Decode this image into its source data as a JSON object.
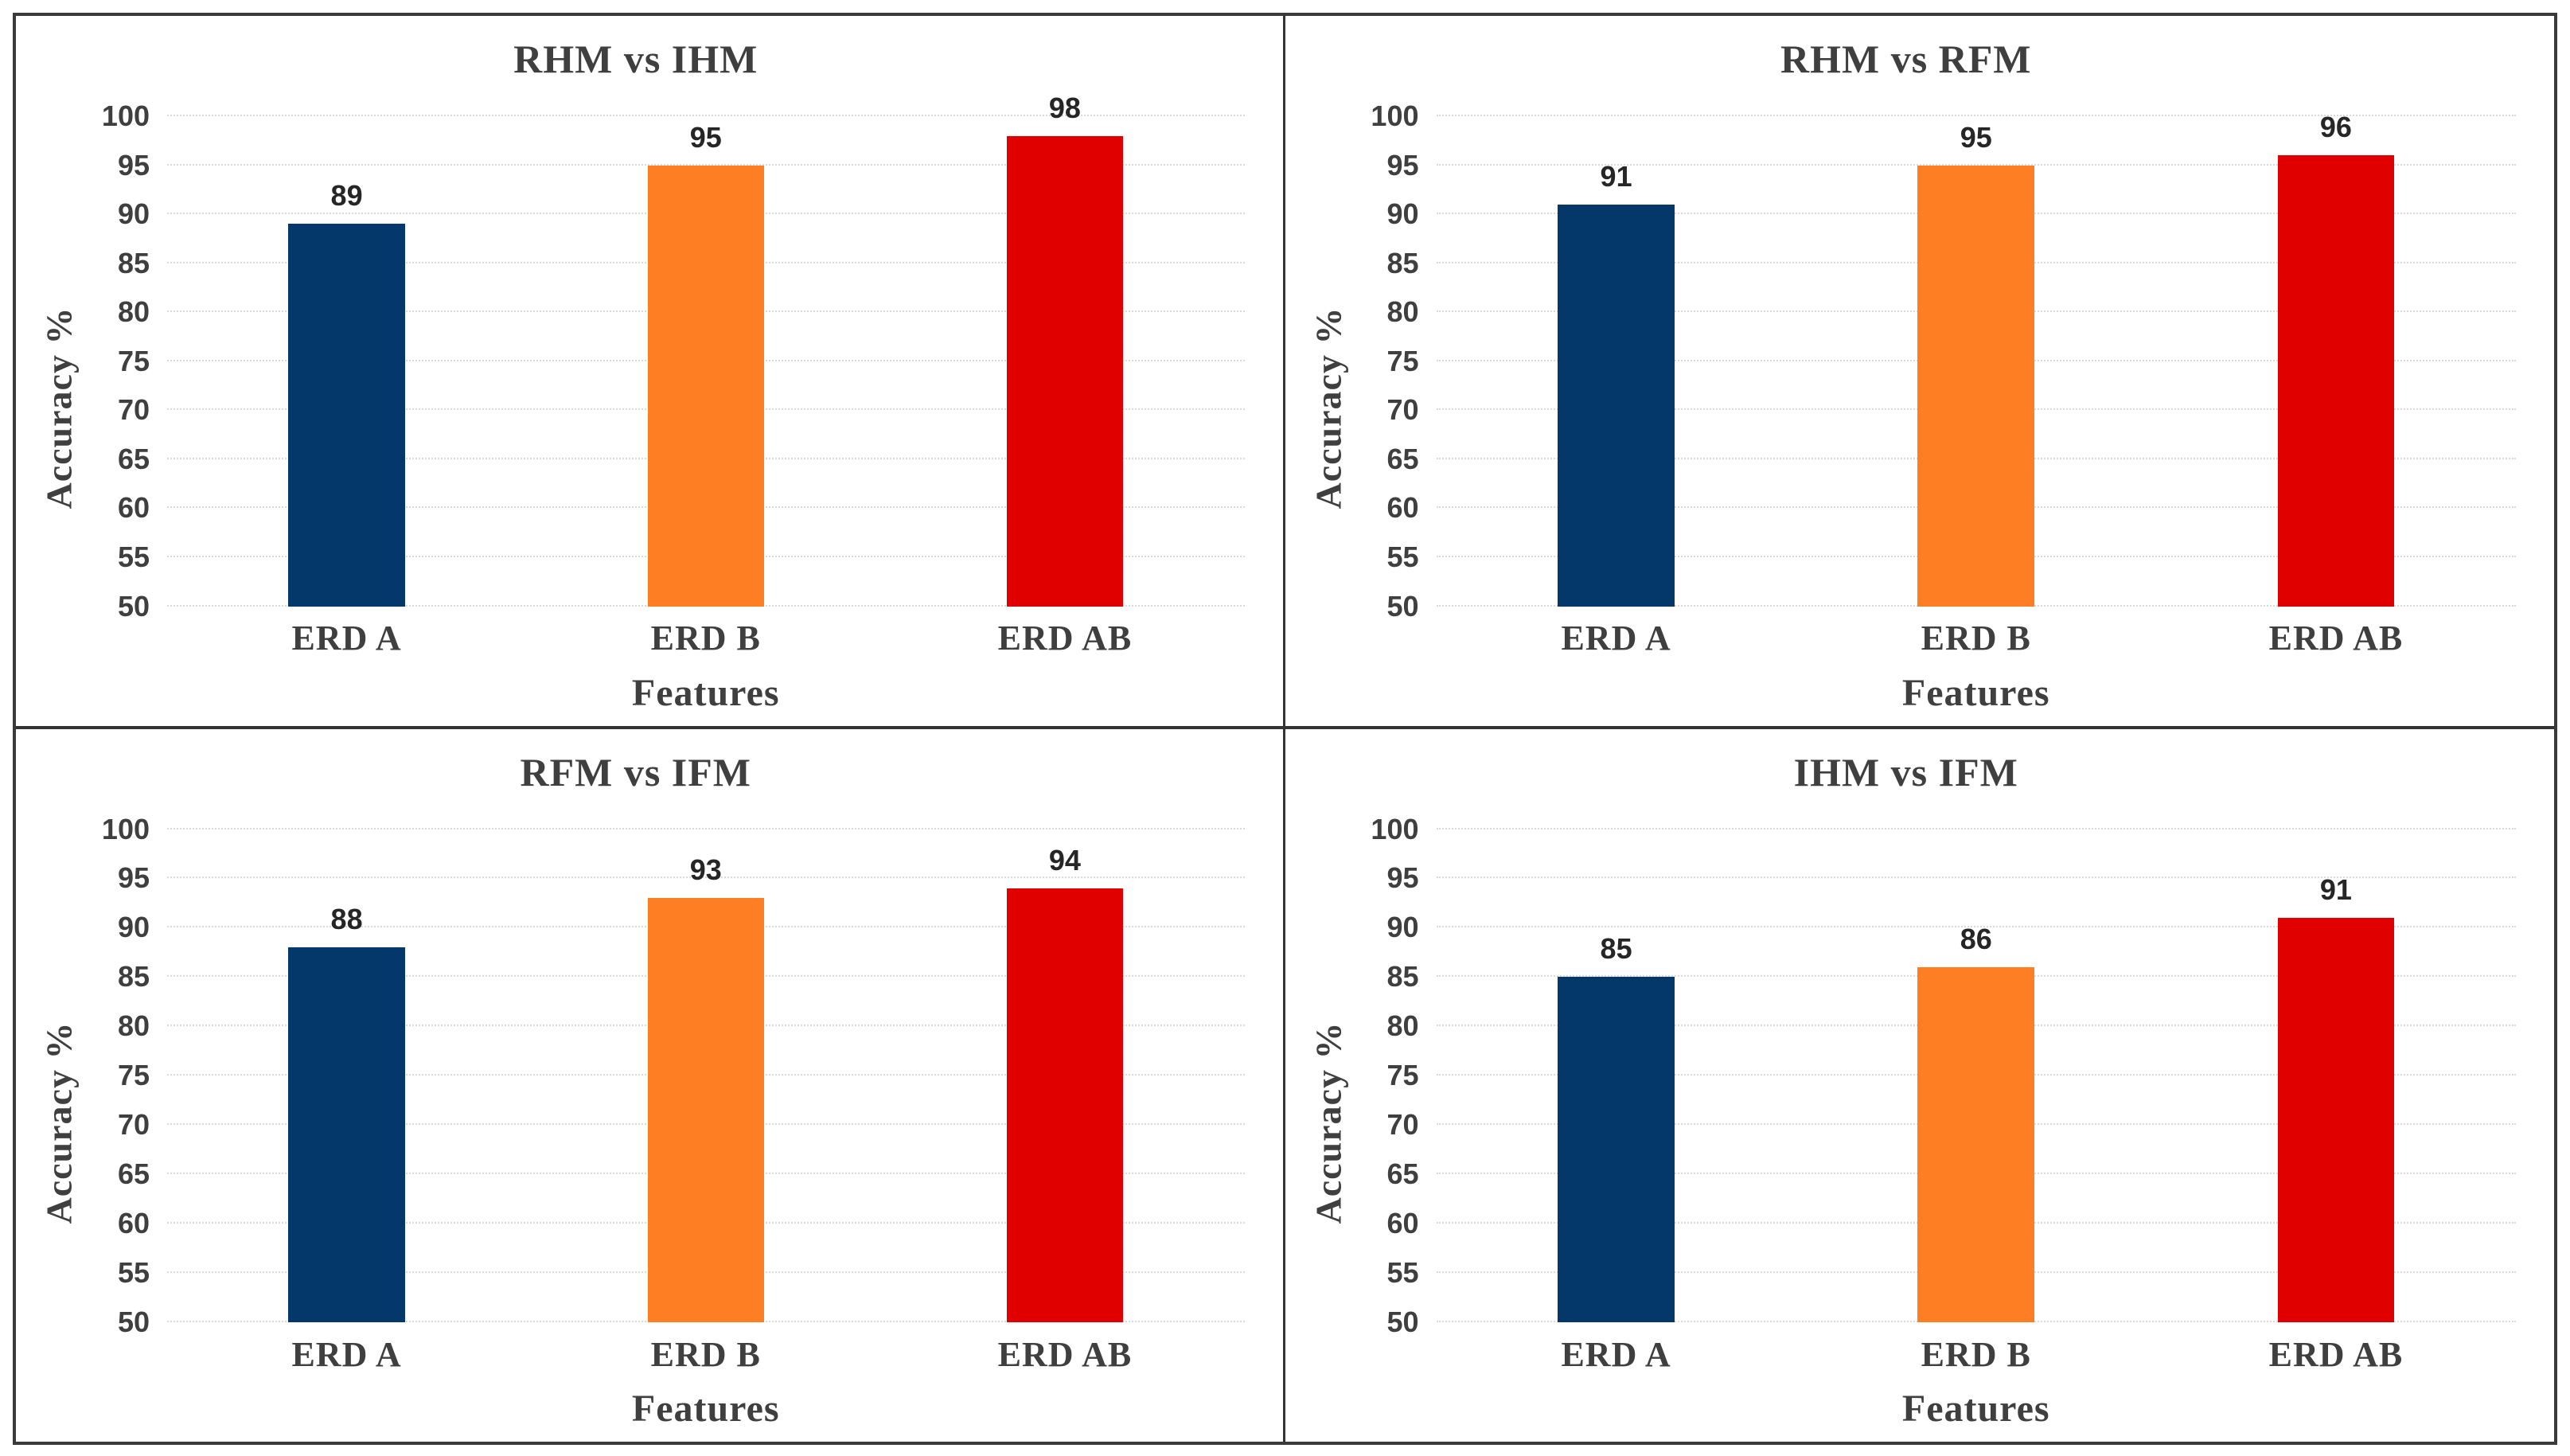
{
  "figure": {
    "background": "#ffffff",
    "outer_border_color": "#3a3a3a",
    "divider_color": "#333333"
  },
  "colors": {
    "bar_series": [
      "#04386B",
      "#FD7E23",
      "#E00000"
    ],
    "title_text": "#3f3f3f",
    "tick_text": "#3f3f3f",
    "data_label_text": "#262626",
    "gridline": "#d9d9d9"
  },
  "chart_data": [
    {
      "type": "bar",
      "title": "RHM vs IHM",
      "xlabel": "Features",
      "ylabel": "Accuracy %",
      "categories": [
        "ERD A",
        "ERD B",
        "ERD AB"
      ],
      "values": [
        89,
        95,
        98
      ],
      "bar_colors": [
        "#04386B",
        "#FD7E23",
        "#E00000"
      ],
      "ylim": [
        50,
        100
      ],
      "yticks": [
        50,
        55,
        60,
        65,
        70,
        75,
        80,
        85,
        90,
        95,
        100
      ],
      "grid": true,
      "legend": false
    },
    {
      "type": "bar",
      "title": "RHM vs RFM",
      "xlabel": "Features",
      "ylabel": "Accuracy %",
      "categories": [
        "ERD A",
        "ERD B",
        "ERD AB"
      ],
      "values": [
        91,
        95,
        96
      ],
      "bar_colors": [
        "#04386B",
        "#FD7E23",
        "#E00000"
      ],
      "ylim": [
        50,
        100
      ],
      "yticks": [
        50,
        55,
        60,
        65,
        70,
        75,
        80,
        85,
        90,
        95,
        100
      ],
      "grid": true,
      "legend": false
    },
    {
      "type": "bar",
      "title": "RFM vs IFM",
      "xlabel": "Features",
      "ylabel": "Accuracy %",
      "categories": [
        "ERD A",
        "ERD B",
        "ERD AB"
      ],
      "values": [
        88,
        93,
        94
      ],
      "bar_colors": [
        "#04386B",
        "#FD7E23",
        "#E00000"
      ],
      "ylim": [
        50,
        100
      ],
      "yticks": [
        50,
        55,
        60,
        65,
        70,
        75,
        80,
        85,
        90,
        95,
        100
      ],
      "grid": true,
      "legend": false
    },
    {
      "type": "bar",
      "title": "IHM vs IFM",
      "xlabel": "Features",
      "ylabel": "Accuracy %",
      "categories": [
        "ERD A",
        "ERD B",
        "ERD AB"
      ],
      "values": [
        85,
        86,
        91
      ],
      "bar_colors": [
        "#04386B",
        "#FD7E23",
        "#E00000"
      ],
      "ylim": [
        50,
        100
      ],
      "yticks": [
        50,
        55,
        60,
        65,
        70,
        75,
        80,
        85,
        90,
        95,
        100
      ],
      "grid": true,
      "legend": false
    }
  ]
}
